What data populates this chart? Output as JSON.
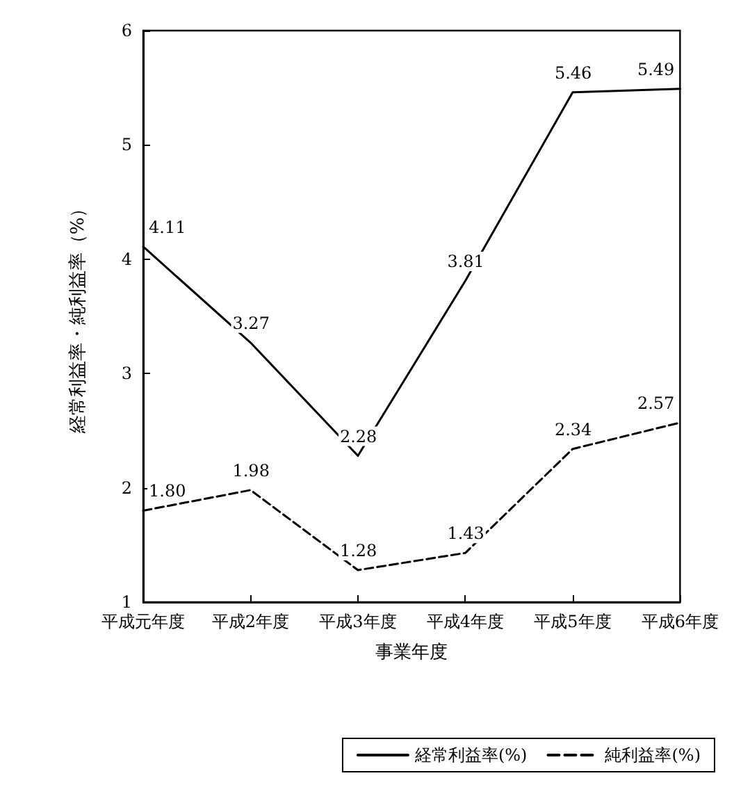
{
  "chart_data": {
    "type": "line",
    "xlabel": "事業年度",
    "ylabel": "経常利益率・純利益率（%）",
    "categories": [
      "平成元年度",
      "平成2年度",
      "平成3年度",
      "平成4年度",
      "平成5年度",
      "平成6年度"
    ],
    "series": [
      {
        "name": "経常利益率(%)",
        "color": "#000000",
        "line_style": "solid",
        "values": [
          4.11,
          3.27,
          2.28,
          3.81,
          5.46,
          5.49
        ],
        "value_labels": [
          "4.11",
          "3.27",
          "2.28",
          "3.81",
          "5.46",
          "5.49"
        ]
      },
      {
        "name": "純利益率(%)",
        "color": "#000000",
        "line_style": "dashed",
        "values": [
          1.8,
          1.98,
          1.28,
          1.43,
          2.34,
          2.57
        ],
        "value_labels": [
          "1.80",
          "1.98",
          "1.28",
          "1.43",
          "2.34",
          "2.57"
        ]
      }
    ],
    "ylim": [
      1,
      6
    ],
    "yticks": [
      1,
      2,
      3,
      4,
      5,
      6
    ],
    "grid": false,
    "legend": "bottom right",
    "marker": "none"
  }
}
